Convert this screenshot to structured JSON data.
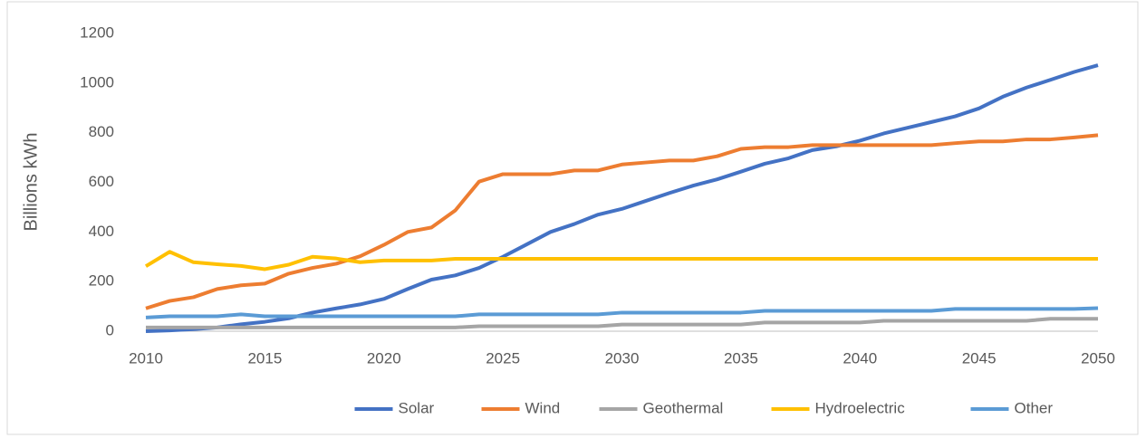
{
  "chart_data": {
    "type": "line",
    "y_label": "Billions kWh",
    "x": [
      2010,
      2011,
      2012,
      2013,
      2014,
      2015,
      2016,
      2017,
      2018,
      2019,
      2020,
      2021,
      2022,
      2023,
      2024,
      2025,
      2026,
      2027,
      2028,
      2029,
      2030,
      2031,
      2032,
      2033,
      2034,
      2035,
      2036,
      2037,
      2038,
      2039,
      2040,
      2041,
      2042,
      2043,
      2044,
      2045,
      2046,
      2047,
      2048,
      2049,
      2050
    ],
    "xlim": [
      2010,
      2050
    ],
    "xticks": [
      2010,
      2015,
      2020,
      2025,
      2030,
      2035,
      2040,
      2045,
      2050
    ],
    "ylim": [
      0,
      1200
    ],
    "yticks": [
      0,
      200,
      400,
      600,
      800,
      1000,
      1200
    ],
    "grid": false,
    "legend": "bottom",
    "series": [
      {
        "name": "Solar",
        "color": "#4472c4",
        "values": [
          0,
          3,
          8,
          15,
          28,
          38,
          52,
          75,
          92,
          108,
          130,
          170,
          208,
          225,
          255,
          300,
          350,
          400,
          432,
          470,
          493,
          525,
          557,
          587,
          612,
          643,
          675,
          697,
          730,
          745,
          768,
          797,
          820,
          843,
          866,
          898,
          945,
          982,
          1013,
          1045,
          1072
        ]
      },
      {
        "name": "Wind",
        "color": "#ed7d31",
        "values": [
          92,
          122,
          137,
          170,
          185,
          192,
          232,
          255,
          272,
          302,
          348,
          400,
          418,
          487,
          603,
          633,
          633,
          633,
          648,
          648,
          672,
          680,
          688,
          688,
          705,
          735,
          742,
          742,
          750,
          750,
          750,
          750,
          750,
          750,
          758,
          765,
          765,
          773,
          773,
          781,
          790
        ]
      },
      {
        "name": "Geothermal",
        "color": "#a5a5a5",
        "values": [
          15,
          15,
          15,
          15,
          15,
          15,
          15,
          15,
          15,
          15,
          15,
          15,
          15,
          15,
          20,
          20,
          20,
          20,
          20,
          20,
          27,
          27,
          27,
          27,
          27,
          27,
          35,
          35,
          35,
          35,
          35,
          42,
          42,
          42,
          42,
          42,
          42,
          42,
          50,
          50,
          50
        ]
      },
      {
        "name": "Hydroelectric",
        "color": "#ffc000",
        "values": [
          262,
          320,
          278,
          270,
          263,
          250,
          268,
          300,
          293,
          278,
          285,
          285,
          285,
          292,
          292,
          292,
          292,
          292,
          292,
          292,
          292,
          292,
          292,
          292,
          292,
          292,
          292,
          292,
          292,
          292,
          292,
          292,
          292,
          292,
          292,
          292,
          292,
          292,
          292,
          292,
          292
        ]
      },
      {
        "name": "Other",
        "color": "#5b9bd5",
        "values": [
          55,
          60,
          60,
          60,
          68,
          60,
          60,
          60,
          60,
          60,
          60,
          60,
          60,
          60,
          68,
          68,
          68,
          68,
          68,
          68,
          75,
          75,
          75,
          75,
          75,
          75,
          82,
          82,
          82,
          82,
          82,
          82,
          82,
          82,
          90,
          90,
          90,
          90,
          90,
          90,
          93
        ]
      }
    ]
  }
}
